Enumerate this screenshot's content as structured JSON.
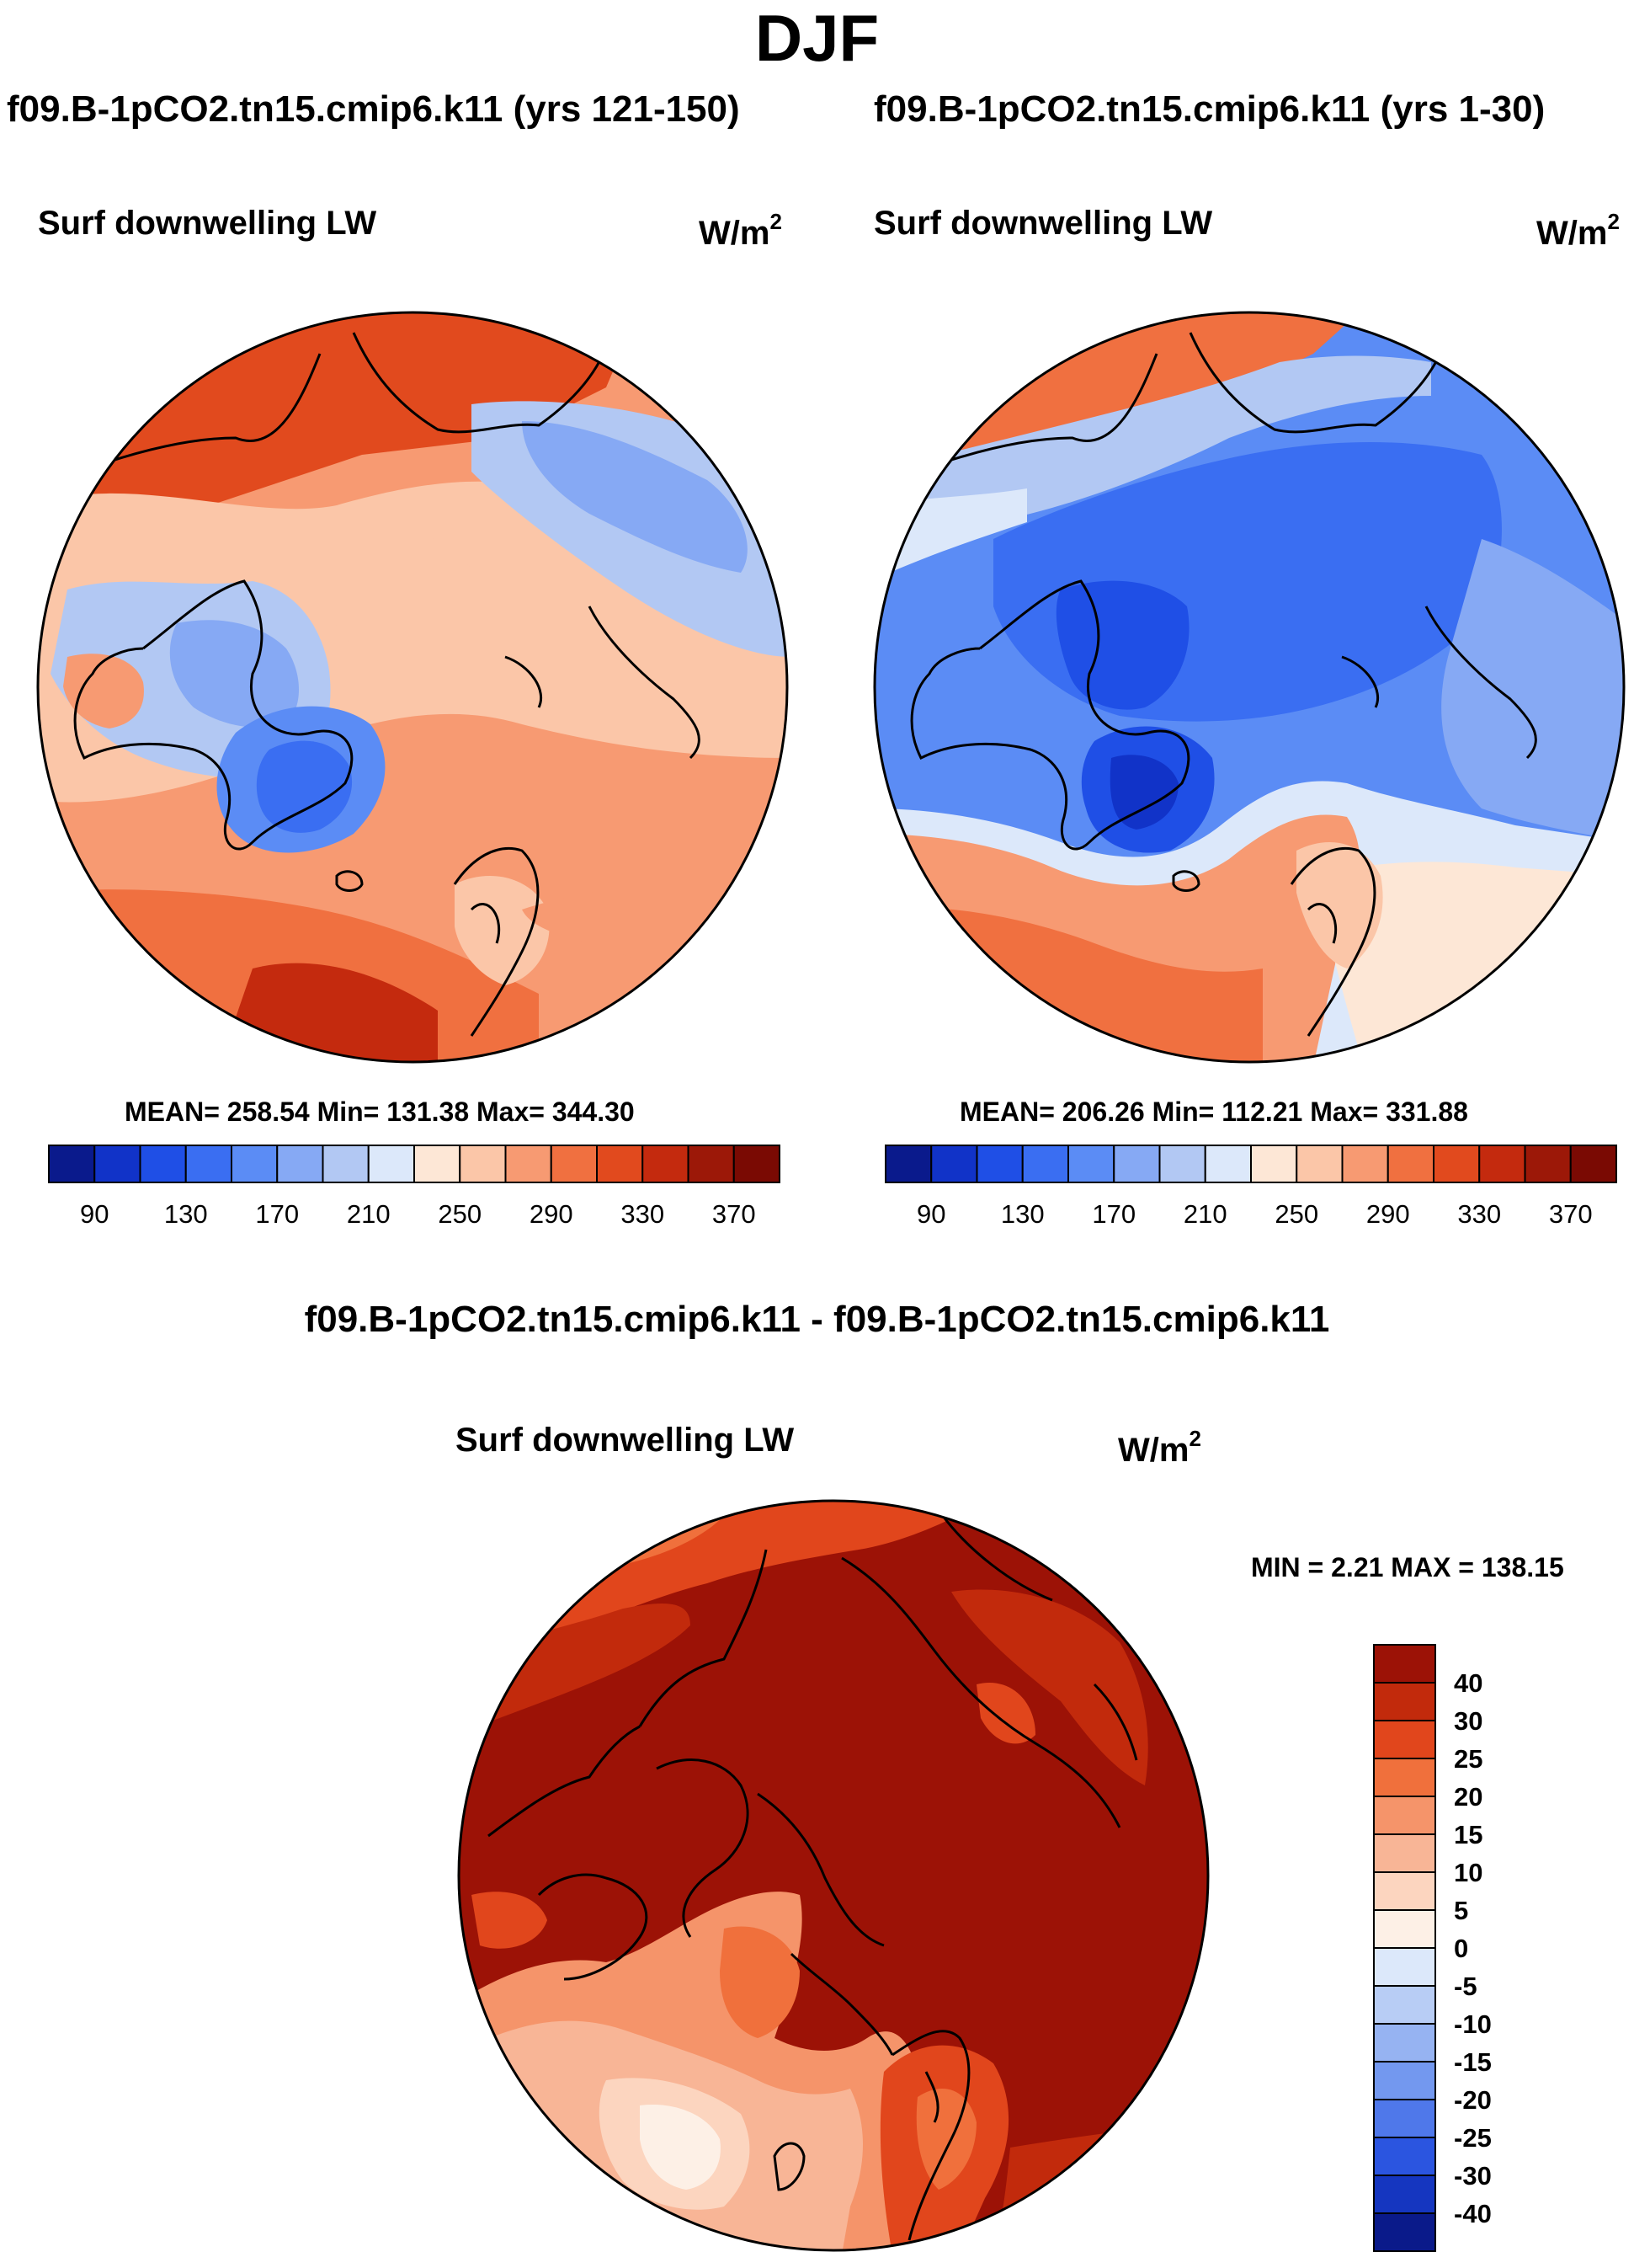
{
  "main_title": "DJF",
  "panels": [
    {
      "run_title": "f09.B-1pCO2.tn15.cmip6.k11 (yrs 121-150)",
      "variable": "Surf downwelling LW",
      "units_base": "W/m",
      "units_exp": "2",
      "stats": "MEAN= 258.54  Min= 131.38  Max= 344.30"
    },
    {
      "run_title": "f09.B-1pCO2.tn15.cmip6.k11 (yrs 1-30)",
      "variable": "Surf downwelling LW",
      "units_base": "W/m",
      "units_exp": "2",
      "stats": "MEAN= 206.26  Min= 112.21  Max= 331.88"
    }
  ],
  "difference": {
    "title": "f09.B-1pCO2.tn15.cmip6.k11 - f09.B-1pCO2.tn15.cmip6.k11",
    "variable": "Surf downwelling LW",
    "units_base": "W/m",
    "units_exp": "2",
    "stats": "MIN =   2.21 MAX = 138.15"
  },
  "chart_data": [
    {
      "type": "heatmap",
      "title": "f09.B-1pCO2.tn15.cmip6.k11 (yrs 121-150)",
      "projection": "north polar stereographic",
      "variable": "Surf downwelling LW",
      "units": "W/m^2",
      "mean": 258.54,
      "min": 131.38,
      "max": 344.3,
      "colorbar": {
        "orientation": "horizontal",
        "tick_labels": [
          "90",
          "130",
          "170",
          "210",
          "250",
          "290",
          "330",
          "370"
        ],
        "levels": [
          90,
          110,
          130,
          150,
          170,
          190,
          210,
          230,
          250,
          270,
          290,
          310,
          330,
          350,
          370
        ],
        "colors": [
          "#0a1a8c",
          "#1133c8",
          "#1f4fe6",
          "#3a6ef2",
          "#5b8cf5",
          "#86a9f4",
          "#b2c8f3",
          "#dce8fa",
          "#fde7d6",
          "#fbc6a8",
          "#f79a72",
          "#f07040",
          "#e14a1e",
          "#c42a0e",
          "#9c1808",
          "#7a0a03"
        ]
      }
    },
    {
      "type": "heatmap",
      "title": "f09.B-1pCO2.tn15.cmip6.k11 (yrs 1-30)",
      "projection": "north polar stereographic",
      "variable": "Surf downwelling LW",
      "units": "W/m^2",
      "mean": 206.26,
      "min": 112.21,
      "max": 331.88,
      "colorbar": {
        "orientation": "horizontal",
        "tick_labels": [
          "90",
          "130",
          "170",
          "210",
          "250",
          "290",
          "330",
          "370"
        ],
        "levels": [
          90,
          110,
          130,
          150,
          170,
          190,
          210,
          230,
          250,
          270,
          290,
          310,
          330,
          350,
          370
        ],
        "colors": [
          "#0a1a8c",
          "#1133c8",
          "#1f4fe6",
          "#3a6ef2",
          "#5b8cf5",
          "#86a9f4",
          "#b2c8f3",
          "#dce8fa",
          "#fde7d6",
          "#fbc6a8",
          "#f79a72",
          "#f07040",
          "#e14a1e",
          "#c42a0e",
          "#9c1808",
          "#7a0a03"
        ]
      }
    },
    {
      "type": "heatmap",
      "title": "f09.B-1pCO2.tn15.cmip6.k11 - f09.B-1pCO2.tn15.cmip6.k11",
      "projection": "north polar stereographic",
      "variable": "Surf downwelling LW",
      "units": "W/m^2",
      "min": 2.21,
      "max": 138.15,
      "colorbar": {
        "orientation": "vertical",
        "tick_labels": [
          "40",
          "30",
          "25",
          "20",
          "15",
          "10",
          "5",
          "0",
          "-5",
          "-10",
          "-15",
          "-20",
          "-25",
          "-30",
          "-40"
        ],
        "colors_top_to_bottom": [
          "#9c1206",
          "#c22a0c",
          "#e1461c",
          "#f0703c",
          "#f5946a",
          "#f8b596",
          "#fcd5bf",
          "#fdf0e6",
          "#dce8fa",
          "#b8cdf5",
          "#96b3f2",
          "#7398ef",
          "#4f78ea",
          "#2b55e0",
          "#1536c0",
          "#0a1a8a"
        ]
      }
    }
  ]
}
